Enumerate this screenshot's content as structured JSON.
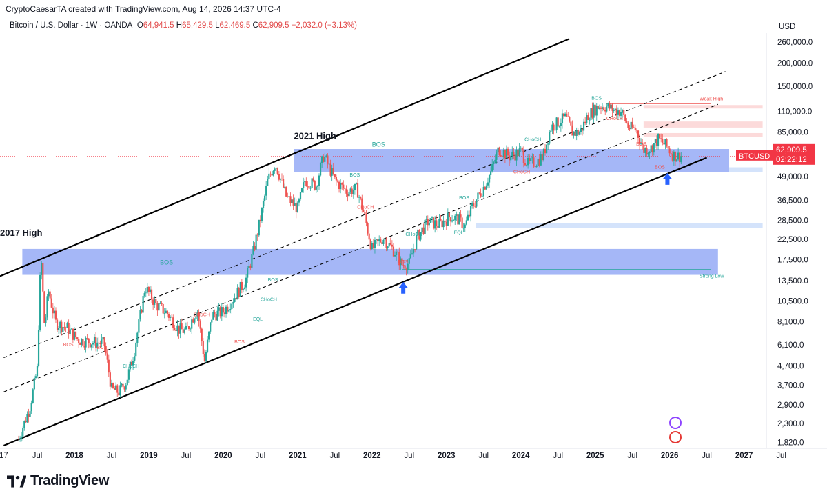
{
  "header": {
    "credit": "CryptoCaesarTA created with TradingView.com, Aug 14, 2026 14:37 UTC-4"
  },
  "symbol": {
    "name": "Bitcoin / U.S. Dollar · 1W · OANDA",
    "o_label": "O",
    "o_value": "64,941.5",
    "h_label": "H",
    "h_value": "65,429.5",
    "l_label": "L",
    "l_value": "62,469.5",
    "c_label": "C",
    "c_value": "62,909.5",
    "change": "−2,032.0 (−3.13%)"
  },
  "brand": "TradingView",
  "colors": {
    "up": "#26a69a",
    "down": "#ef5350",
    "zone": "#5b7cf0",
    "zone_light": "#cfe0fb",
    "supply": "#fbd3d3",
    "price_tag": "#f23645"
  },
  "chart_data": {
    "type": "candlestick",
    "y_scale": "log",
    "y_axis_unit": "USD",
    "y_ticks": [
      1820,
      2300,
      2900,
      3700,
      4700,
      6100,
      8100,
      10500,
      13500,
      17500,
      22500,
      28500,
      36500,
      49000,
      85000,
      110000,
      150000,
      200000,
      260000
    ],
    "y_tick_labels": [
      "1,820.0",
      "2,300.0",
      "2,900.0",
      "3,700.0",
      "4,700.0",
      "6,100.0",
      "8,100.0",
      "10,500.0",
      "13,500.0",
      "17,500.0",
      "22,500.0",
      "28,500.0",
      "36,500.0",
      "49,000.0",
      "85,000.0",
      "110,000.0",
      "150,000.0",
      "200,000.0",
      "260,000.0"
    ],
    "x_tick_labels": [
      "17",
      "Jul",
      "2018",
      "Jul",
      "2019",
      "Jul",
      "2020",
      "Jul",
      "2021",
      "Jul",
      "2022",
      "Jul",
      "2023",
      "Jul",
      "2024",
      "Jul",
      "2025",
      "Jul",
      "2026",
      "Jul",
      "2027",
      "Jul"
    ],
    "x_tick_dates": [
      2017.5,
      2017.95,
      2018.45,
      2018.95,
      2019.45,
      2019.95,
      2020.45,
      2020.95,
      2021.45,
      2021.95,
      2022.45,
      2022.95,
      2023.45,
      2023.95,
      2024.45,
      2024.95,
      2025.45,
      2025.95,
      2026.45,
      2026.95,
      2027.45,
      2027.95
    ],
    "x_range": [
      2017.45,
      2027.75
    ],
    "price_series": [
      [
        2017.7,
        1900
      ],
      [
        2017.85,
        2800
      ],
      [
        2017.95,
        4500
      ],
      [
        2018.05,
        7500
      ],
      [
        2018.0,
        19000
      ],
      [
        2018.1,
        12000
      ],
      [
        2018.2,
        8000
      ],
      [
        2018.35,
        7500
      ],
      [
        2018.5,
        6500
      ],
      [
        2018.7,
        6300
      ],
      [
        2018.85,
        6200
      ],
      [
        2018.95,
        3500
      ],
      [
        2019.05,
        3400
      ],
      [
        2019.15,
        3900
      ],
      [
        2019.25,
        5500
      ],
      [
        2019.4,
        12500
      ],
      [
        2019.55,
        10000
      ],
      [
        2019.7,
        9000
      ],
      [
        2019.85,
        7400
      ],
      [
        2019.95,
        7200
      ],
      [
        2020.1,
        9500
      ],
      [
        2020.2,
        5000
      ],
      [
        2020.3,
        8800
      ],
      [
        2020.45,
        9200
      ],
      [
        2020.6,
        11000
      ],
      [
        2020.75,
        13500
      ],
      [
        2020.85,
        19000
      ],
      [
        2020.95,
        29000
      ],
      [
        2021.05,
        47000
      ],
      [
        2021.15,
        58000
      ],
      [
        2021.3,
        38000
      ],
      [
        2021.45,
        33000
      ],
      [
        2021.55,
        47000
      ],
      [
        2021.7,
        44000
      ],
      [
        2021.8,
        64000
      ],
      [
        2021.95,
        47000
      ],
      [
        2022.1,
        41000
      ],
      [
        2022.25,
        42000
      ],
      [
        2022.35,
        30000
      ],
      [
        2022.45,
        20000
      ],
      [
        2022.6,
        23000
      ],
      [
        2022.75,
        19500
      ],
      [
        2022.85,
        16500
      ],
      [
        2022.95,
        16700
      ],
      [
        2023.05,
        23000
      ],
      [
        2023.2,
        28000
      ],
      [
        2023.35,
        27000
      ],
      [
        2023.5,
        30000
      ],
      [
        2023.6,
        29000
      ],
      [
        2023.7,
        26500
      ],
      [
        2023.8,
        34000
      ],
      [
        2023.95,
        43000
      ],
      [
        2024.05,
        52000
      ],
      [
        2024.15,
        69000
      ],
      [
        2024.3,
        63000
      ],
      [
        2024.45,
        67000
      ],
      [
        2024.55,
        57000
      ],
      [
        2024.65,
        59000
      ],
      [
        2024.75,
        63000
      ],
      [
        2024.85,
        90000
      ],
      [
        2024.95,
        96000
      ],
      [
        2025.05,
        102000
      ],
      [
        2025.15,
        84000
      ],
      [
        2025.25,
        85000
      ],
      [
        2025.35,
        105000
      ],
      [
        2025.5,
        118000
      ],
      [
        2025.6,
        117000
      ],
      [
        2025.7,
        112000
      ],
      [
        2025.8,
        110000
      ],
      [
        2025.9,
        90000
      ],
      [
        2026.0,
        88000
      ],
      [
        2026.1,
        68000
      ],
      [
        2026.2,
        70000
      ],
      [
        2026.3,
        78000
      ],
      [
        2026.4,
        72000
      ],
      [
        2026.5,
        64000
      ],
      [
        2026.55,
        62909.5
      ],
      [
        2026.62,
        63500
      ]
    ],
    "last_price": {
      "label": "62,909.5",
      "symbol": "BTCUSD",
      "countdown": "02:22:12"
    },
    "zones": [
      {
        "kind": "demand",
        "from": 2017.75,
        "to": 2027.1,
        "low": 14500,
        "high": 20000
      },
      {
        "kind": "demand",
        "from": 2021.4,
        "to": 2027.25,
        "low": 52000,
        "high": 69000
      },
      {
        "kind": "demand_light",
        "from": 2027.25,
        "to": 2027.7,
        "low": 52000,
        "high": 55000
      },
      {
        "kind": "demand_light",
        "from": 2023.85,
        "to": 2027.7,
        "low": 26000,
        "high": 27500
      },
      {
        "kind": "supply",
        "from": 2026.1,
        "to": 2027.7,
        "low": 114000,
        "high": 119000
      },
      {
        "kind": "supply",
        "from": 2026.1,
        "to": 2027.7,
        "low": 90000,
        "high": 97000
      },
      {
        "kind": "supply",
        "from": 2026.1,
        "to": 2027.7,
        "low": 80000,
        "high": 84000
      }
    ],
    "channel": {
      "upper": [
        [
          2017.4,
          14000
        ],
        [
          2025.1,
          270000
        ]
      ],
      "lower": [
        [
          2017.5,
          1750
        ],
        [
          2026.95,
          62000
        ]
      ],
      "mid1": [
        [
          2017.5,
          5200
        ],
        [
          2027.2,
          180000
        ]
      ],
      "mid2": [
        [
          2017.5,
          3400
        ],
        [
          2027.1,
          120000
        ]
      ]
    },
    "levels": [
      {
        "label": "Weak High",
        "price": 121000,
        "from": 2025.6,
        "to": 2027.0,
        "color": "#ef5350"
      },
      {
        "label": "Strong Low",
        "price": 15500,
        "from": 2022.85,
        "to": 2027.0,
        "color": "#26a69a"
      }
    ],
    "annotations": [
      {
        "text": "2017 High",
        "x": 2017.45,
        "price": 23500,
        "size": "big"
      },
      {
        "text": "2021 High",
        "x": 2021.4,
        "price": 78000,
        "size": "big"
      },
      {
        "text": "BOS",
        "x": 2022.45,
        "price": 71000,
        "color": "#26a69a",
        "size": "mid"
      },
      {
        "text": "BOS",
        "x": 2019.6,
        "price": 16500,
        "color": "#26a69a",
        "size": "mid"
      },
      {
        "text": "BOS",
        "x": 2018.3,
        "price": 6000,
        "color": "#ef5350"
      },
      {
        "text": "BOS",
        "x": 2018.75,
        "price": 5800,
        "color": "#ef5350"
      },
      {
        "text": "CHoCH",
        "x": 2019.1,
        "price": 4600,
        "color": "#26a69a"
      },
      {
        "text": "CHoCH",
        "x": 2020.05,
        "price": 8700,
        "color": "#ef5350"
      },
      {
        "text": "BOS",
        "x": 2020.6,
        "price": 6200,
        "color": "#ef5350"
      },
      {
        "text": "EQL",
        "x": 2020.85,
        "price": 8200,
        "color": "#26a69a"
      },
      {
        "text": "CHoCH",
        "x": 2020.95,
        "price": 10500,
        "color": "#26a69a"
      },
      {
        "text": "BOS",
        "x": 2021.05,
        "price": 13400,
        "color": "#26a69a"
      },
      {
        "text": "BOS",
        "x": 2022.15,
        "price": 49000,
        "color": "#26a69a"
      },
      {
        "text": "CHoCH",
        "x": 2022.25,
        "price": 33000,
        "color": "#ef5350"
      },
      {
        "text": "CHoCH",
        "x": 2022.9,
        "price": 23500,
        "color": "#26a69a"
      },
      {
        "text": "BOS",
        "x": 2022.8,
        "price": 16700,
        "color": "#ef5350"
      },
      {
        "text": "EQL",
        "x": 2023.55,
        "price": 24000,
        "color": "#26a69a"
      },
      {
        "text": "BOS",
        "x": 2023.62,
        "price": 37000,
        "color": "#26a69a"
      },
      {
        "text": "CHoCH",
        "x": 2024.5,
        "price": 76000,
        "color": "#26a69a"
      },
      {
        "text": "CHoCH",
        "x": 2024.35,
        "price": 51000,
        "color": "#ef5350"
      },
      {
        "text": "BOS",
        "x": 2025.4,
        "price": 127000,
        "color": "#26a69a"
      },
      {
        "text": "CHoCH",
        "x": 2025.6,
        "price": 99000,
        "color": "#ef5350"
      },
      {
        "text": "BOS",
        "x": 2026.0,
        "price": 72000,
        "color": "#ef5350"
      },
      {
        "text": "BOS",
        "x": 2026.25,
        "price": 54000,
        "color": "#ef5350"
      }
    ],
    "arrows": [
      {
        "x": 2022.87,
        "price": 12200
      },
      {
        "x": 2026.42,
        "price": 47000
      }
    ],
    "grid": false,
    "legend": "none"
  }
}
